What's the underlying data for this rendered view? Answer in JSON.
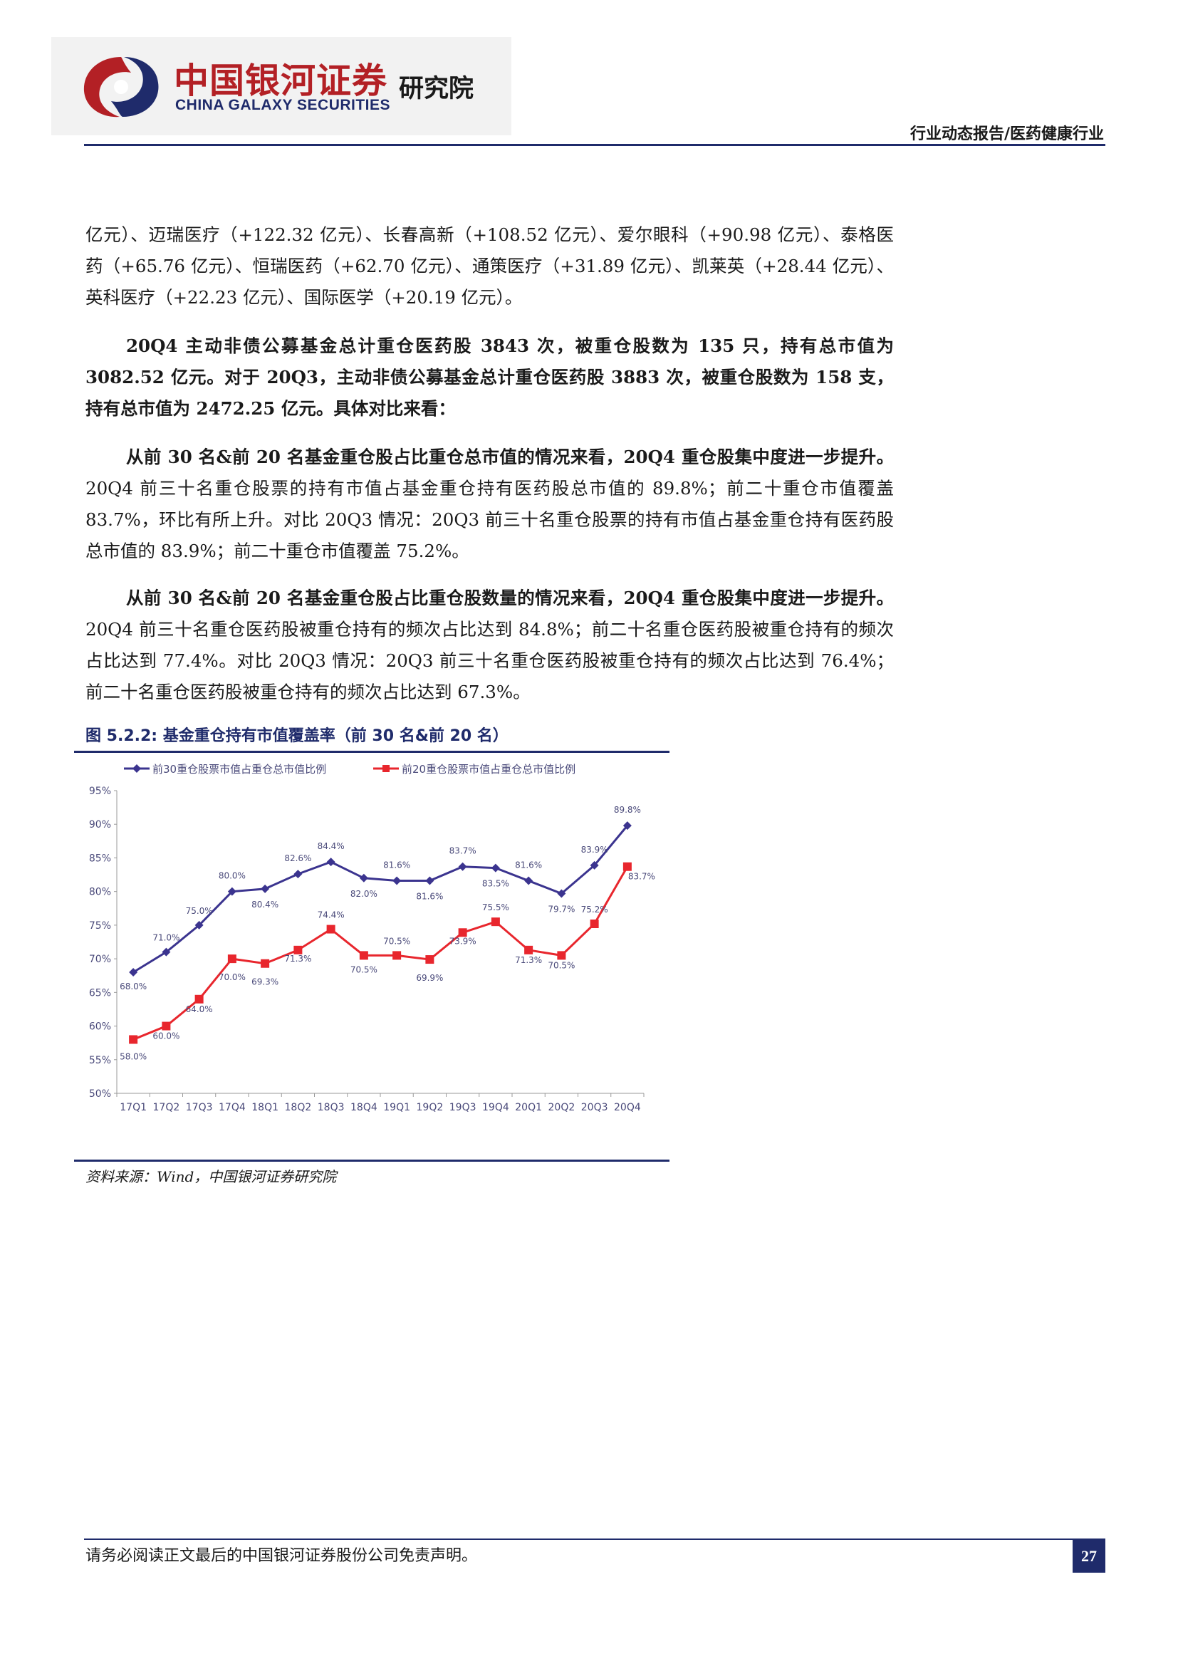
{
  "header": {
    "logo_cn": "中国银河证券",
    "logo_en": "CHINA GALAXY SECURITIES",
    "logo_inst": "研究院",
    "category": "行业动态报告/医药健康行业"
  },
  "paragraphs": {
    "p0": "亿元）、迈瑞医疗（+122.32 亿元）、长春高新（+108.52 亿元）、爱尔眼科（+90.98 亿元）、泰格医药（+65.76 亿元）、恒瑞医药（+62.70 亿元）、通策医疗（+31.89 亿元）、凯莱英（+28.44 亿元）、英科医疗（+22.23 亿元）、国际医学（+20.19 亿元）。",
    "p1": "20Q4 主动非债公募基金总计重仓医药股 3843 次，被重仓股数为 135 只，持有总市值为 3082.52 亿元。对于 20Q3，主动非债公募基金总计重仓医药股 3883 次，被重仓股数为 158 支，持有总市值为 2472.25 亿元。具体对比来看：",
    "p2_bold": "从前 30 名&前 20 名基金重仓股占比重仓总市值的情况来看，20Q4 重仓股集中度进一步提升。",
    "p2_rest": "20Q4 前三十名重仓股票的持有市值占基金重仓持有医药股总市值的 89.8%；前二十重仓市值覆盖 83.7%，环比有所上升。对比 20Q3 情况：20Q3 前三十名重仓股票的持有市值占基金重仓持有医药股总市值的 83.9%；前二十重仓市值覆盖 75.2%。",
    "p3_bold": "从前 30 名&前 20 名基金重仓股占比重仓股数量的情况来看，20Q4 重仓股集中度进一步提升。",
    "p3_rest": "20Q4 前三十名重仓医药股被重仓持有的频次占比达到 84.8%；前二十名重仓医药股被重仓持有的频次占比达到 77.4%。对比 20Q3 情况：20Q3 前三十名重仓医药股被重仓持有的频次占比达到 76.4%；前二十名重仓医药股被重仓持有的频次占比达到 67.3%。"
  },
  "figure": {
    "title": "图 5.2.2: 基金重仓持有市值覆盖率（前 30 名&前 20 名）",
    "source": "资料来源：Wind，中国银河证券研究院"
  },
  "chart_data": {
    "type": "line",
    "categories": [
      "17Q1",
      "17Q2",
      "17Q3",
      "17Q4",
      "18Q1",
      "18Q2",
      "18Q3",
      "18Q4",
      "19Q1",
      "19Q2",
      "19Q3",
      "19Q4",
      "20Q1",
      "20Q2",
      "20Q3",
      "20Q4"
    ],
    "series": [
      {
        "name": "前30重仓股票市值占重仓总市值比例",
        "color": "#3b348f",
        "marker": "diamond",
        "values": [
          68.0,
          71.0,
          75.0,
          80.0,
          80.4,
          82.6,
          84.4,
          82.0,
          81.6,
          81.6,
          83.7,
          83.5,
          81.6,
          79.7,
          83.9,
          89.8
        ],
        "labels": [
          "68.0%",
          "71.0%",
          "75.0%",
          "80.0%",
          "80.4%",
          "82.6%",
          "84.4%",
          "82.0%",
          "81.6%",
          "81.6%",
          "83.7%",
          "83.5%",
          "81.6%",
          "79.7%",
          "83.9%",
          "89.8%"
        ]
      },
      {
        "name": "前20重仓股票市值占重仓总市值比例",
        "color": "#e8262d",
        "marker": "square",
        "values": [
          58.0,
          60.0,
          64.0,
          70.0,
          69.3,
          71.3,
          74.4,
          70.5,
          70.5,
          69.9,
          73.9,
          75.5,
          71.3,
          70.5,
          75.2,
          83.7
        ],
        "labels": [
          "58.0%",
          "60.0%",
          "64.0%",
          "70.0%",
          "69.3%",
          "71.3%",
          "74.4%",
          "70.5%",
          "70.5%",
          "69.9%",
          "73.9%",
          "75.5%",
          "71.3%",
          "70.5%",
          "75.2%",
          "83.7%"
        ]
      }
    ],
    "ylim": [
      50,
      95
    ],
    "yticks": [
      "50%",
      "55%",
      "60%",
      "65%",
      "70%",
      "75%",
      "80%",
      "85%",
      "90%",
      "95%"
    ],
    "grid": false,
    "legend": "top"
  },
  "footer": {
    "disclaimer": "请务必阅读正文最后的中国银河证券股份公司免责声明。",
    "page_number": "27"
  }
}
